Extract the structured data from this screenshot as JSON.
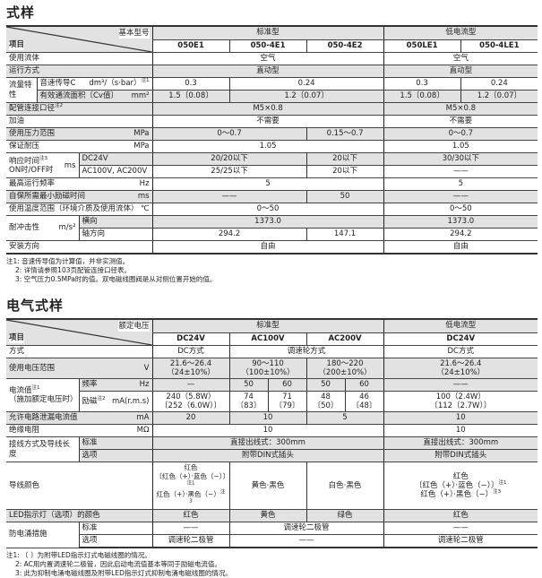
{
  "spec": {
    "title": "式样",
    "header": {
      "corner_top": "基本型号",
      "corner_bottom": "项目",
      "group_std": "标准型",
      "group_low": "低电流型",
      "models": [
        "050E1",
        "050-4E1",
        "050-4E2",
        "050LE1",
        "050-4LE1"
      ]
    },
    "fluid": {
      "label": "使用流体",
      "std": "空气",
      "low": "空气"
    },
    "operation": {
      "label": "运行方式",
      "std": "直动型",
      "low": "直动型"
    },
    "flow": {
      "label": "流量特性",
      "sonic": {
        "label": "音速传导C",
        "unit": "dm³/（s·bar）",
        "note": "注1",
        "values": [
          "0.3",
          "0.24",
          "0.3",
          "0.24"
        ]
      },
      "cv": {
        "label": "有效通流面积〔Cv值〕",
        "unit": "mm²",
        "values": [
          "1.5〔0.08〕",
          "1.2〔0.07〕",
          "1.5〔0.08〕",
          "1.2〔0.07〕"
        ]
      }
    },
    "port": {
      "label": "配管连接口径",
      "note": "注2",
      "std": "M5×0.8",
      "low": "M5×0.8"
    },
    "lube": {
      "label": "加油",
      "std": "不需要",
      "low": "不需要"
    },
    "pressure": {
      "label": "使用压力范围",
      "unit": "MPa",
      "values": [
        "0～0.7",
        "0.15～0.7",
        "0～0.7"
      ]
    },
    "proof": {
      "label": "保证耐压",
      "unit": "MPa",
      "std": "1.05",
      "low": "1.05"
    },
    "response": {
      "label": "响应时间",
      "note": "注3",
      "label2": "ON时/OFF时",
      "unit": "ms",
      "dc": {
        "label": "DC24V",
        "values": [
          "20/20以下",
          "20以下",
          "30/30以下"
        ]
      },
      "ac": {
        "label": "AC100V, AC200V",
        "values": [
          "25/25以下",
          "20以下",
          "——"
        ]
      }
    },
    "freq": {
      "label": "最高运行频率",
      "unit": "Hz",
      "std": "5",
      "low": "5"
    },
    "selfhold": {
      "label": "自保所需最小励磁时间",
      "unit": "ms",
      "values": [
        "——",
        "50",
        "——"
      ]
    },
    "temp": {
      "label": "使用温度范围（环境介质及使用流体）",
      "unit": "℃",
      "std": "0～50",
      "low": "0～50"
    },
    "shock": {
      "label": "耐冲击性",
      "unit": "m/s²",
      "lateral": {
        "label": "横向",
        "std": "1373.0",
        "low": "1373.0"
      },
      "axial": {
        "label": "轴方向",
        "values": [
          "294.2",
          "147.1",
          "294.2"
        ]
      }
    },
    "mount": {
      "label": "安装方向",
      "std": "自由",
      "low": "自由"
    },
    "notes": [
      "注1:  音速传导值为计算值，并非实测值。",
      "2:  详情请参照103页配管连接口径表。",
      "3:  空气压力0.5MPa时的值。双电磁线圈阀是从对侧位置开始的值。"
    ]
  },
  "electrical": {
    "title": "电气式样",
    "header": {
      "corner_top": "额定电压",
      "corner_bottom": "项目",
      "group_std": "标准型",
      "group_low": "低电流型",
      "voltages": [
        "DC24V",
        "AC100V",
        "AC200V",
        "DC24V"
      ]
    },
    "method": {
      "label": "方式",
      "values": [
        "DC方式",
        "调速轮方式",
        "DC方式"
      ]
    },
    "voltage_range": {
      "label": "使用电压范围",
      "unit": "V",
      "values": [
        [
          "21.6～26.4",
          "（24±10%）"
        ],
        [
          "90～110",
          "（100±10%）"
        ],
        [
          "180～220",
          "（200±10%）"
        ],
        [
          "21.6～26.4",
          "（24±10%）"
        ]
      ]
    },
    "current": {
      "label": "电流值",
      "note": "注1",
      "label2": "（施加额定电压时）",
      "frequency": {
        "label": "频率",
        "unit": "Hz",
        "values": [
          "—",
          "50",
          "60",
          "50",
          "60",
          "——"
        ]
      },
      "excitation": {
        "label": "励磁",
        "note": "注2",
        "unit": "mA(r.m.s)",
        "values": [
          [
            "240（5.8W）",
            "〔252（6.0W）〕"
          ],
          [
            "74",
            "〔83〕"
          ],
          [
            "71",
            "〔79〕"
          ],
          [
            "48",
            "〔50〕"
          ],
          [
            "46",
            "〔48〕"
          ],
          [
            "100（2.4W）",
            "〔112（2.7W）〕"
          ]
        ]
      }
    },
    "leak": {
      "label": "允许电路泄漏电流值",
      "unit": "mA",
      "values": [
        "20",
        "10",
        "5",
        "10"
      ]
    },
    "insulation": {
      "label": "绝缘电阻",
      "unit": "MΩ",
      "std": "10",
      "low": "10"
    },
    "wiring": {
      "label": "接线方式及导线长度",
      "standard": {
        "label": "标准",
        "std": "直接出线式：300mm",
        "low": "直接出线式：300mm"
      },
      "option": {
        "label": "选项",
        "std": "附带DIN式插头",
        "low": "附带DIN式插头"
      }
    },
    "lead_color": {
      "label": "导线颜色",
      "dc": [
        "红色",
        "〔红色（+）·蓝色（−）〕",
        "红色（+）·黑色（−）"
      ],
      "dc_notes": [
        "注1",
        "注3"
      ],
      "ac100": "黄色·黑色",
      "ac200": "白色·黑色",
      "low": [
        "红色",
        "〔红色（+）·蓝色（−）〕",
        "红色（+）·黑色（−）"
      ],
      "low_notes": [
        "注1",
        "注3"
      ]
    },
    "led": {
      "label": "LED指示灯（选项）的颜色",
      "values": [
        "红色",
        "黄色",
        "绿色",
        "红色"
      ]
    },
    "surge": {
      "label": "防电涌措施",
      "standard": {
        "label": "标准",
        "values": [
          "——",
          "调速轮二极管",
          "——"
        ]
      },
      "option": {
        "label": "选项",
        "values": [
          "调速轮二极管",
          "——",
          "调速轮二极管"
        ]
      }
    },
    "notes": [
      "注1:  〔  〕为附带LED指示灯式电磁线圈的情况。",
      "2:  AC用内置调速轮二极管，因此启动电流值基本等同于励磁电流值。",
      "3:  此为抑制电涌电磁线圈及附带LED指示灯式抑制电涌电磁线圈的情况。"
    ]
  },
  "colors": {
    "header_gray": "#e2e2e2",
    "border": "#444444"
  }
}
